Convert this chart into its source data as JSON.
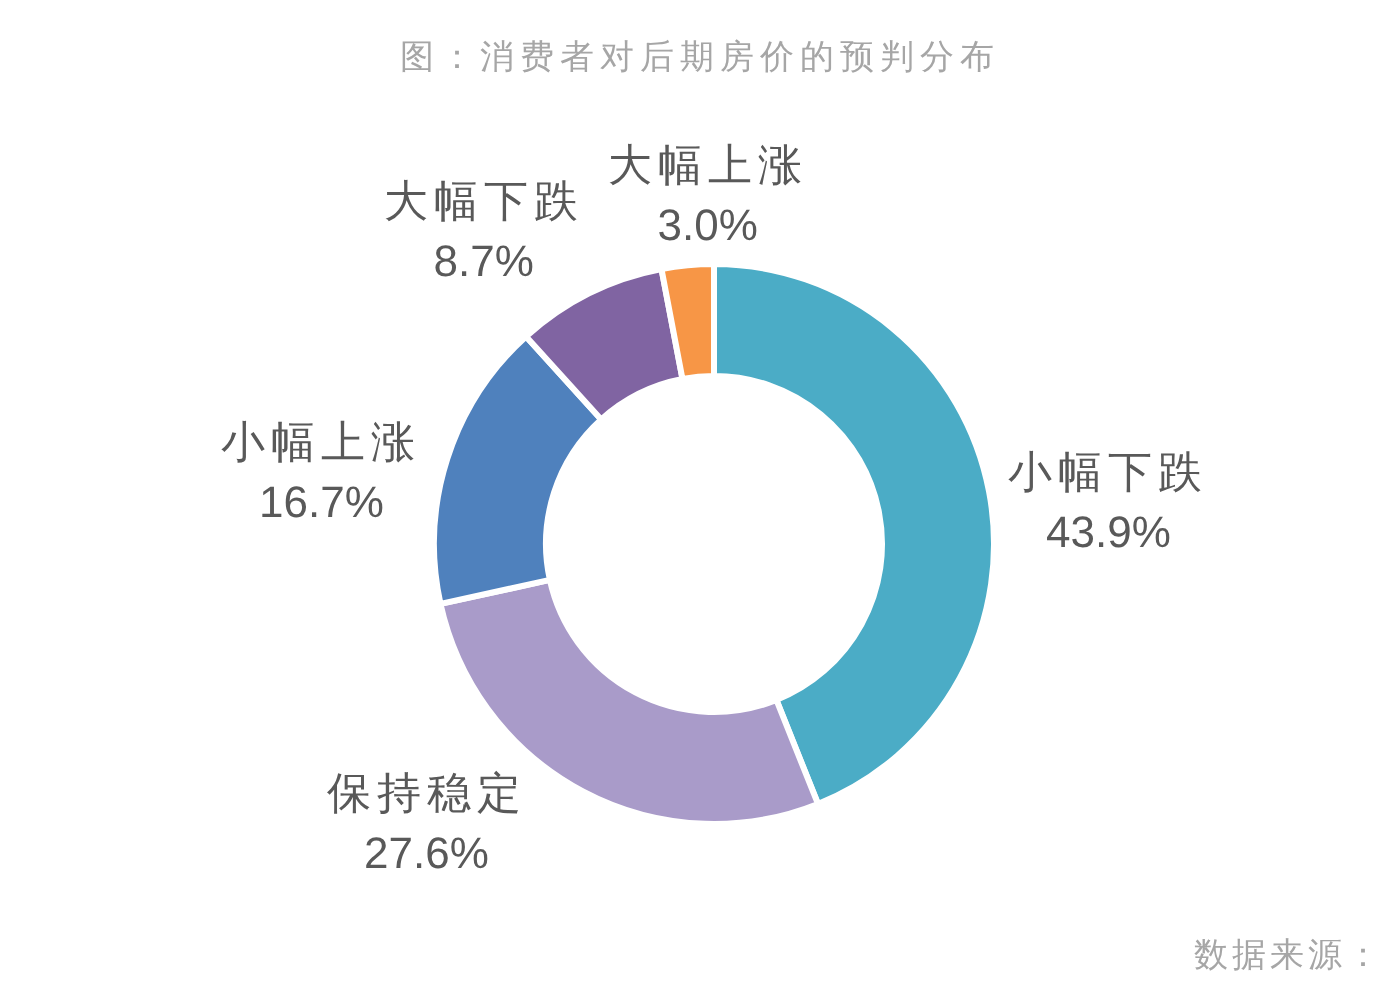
{
  "chart_data": {
    "type": "donut",
    "title": "图：消费者对后期房价的预判分布",
    "categories": [
      "小幅下跌",
      "保持稳定",
      "小幅上涨",
      "大幅下跌",
      "大幅上涨"
    ],
    "values": [
      43.9,
      27.6,
      16.7,
      8.7,
      3.0
    ],
    "colors": [
      "#4bacc6",
      "#a99bc9",
      "#4f81bd",
      "#8064a2",
      "#f79646"
    ],
    "value_labels": [
      "43.9%",
      "27.6%",
      "16.7%",
      "8.7%",
      "3.0%"
    ],
    "annotations": [
      "数据来源："
    ]
  }
}
